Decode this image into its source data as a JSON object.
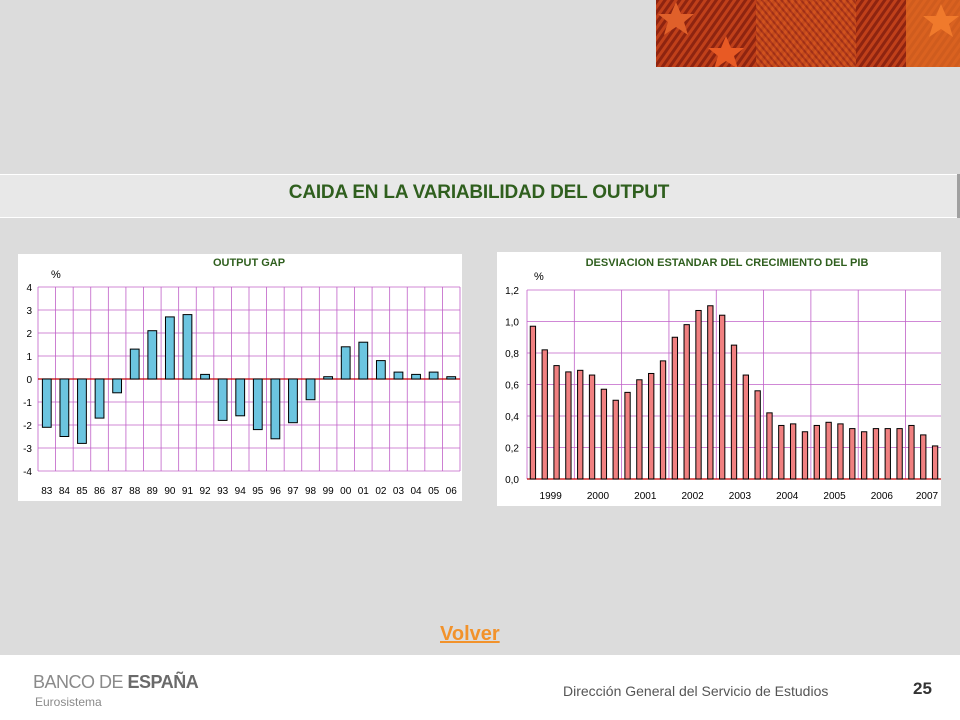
{
  "slide": {
    "title": "CAIDA EN LA VARIABILIDAD DEL OUTPUT",
    "link_label": "Volver",
    "page_number": "25",
    "footer_department": "Dirección General del Servicio de Estudios",
    "logo": {
      "main_prefix": "BANCO DE ",
      "main_bold": "ESPAÑA",
      "sub": "Eurosistema"
    }
  },
  "chart_data": [
    {
      "type": "bar",
      "title": "OUTPUT GAP",
      "ylabel": "%",
      "ylim": [
        -4,
        4
      ],
      "yticks": [
        -4,
        -3,
        -2,
        -1,
        0,
        1,
        2,
        3,
        4
      ],
      "grid": true,
      "colors": {
        "bar": "#6cc5e0",
        "grid": "#c060c8",
        "title": "#2f5f1e",
        "axis": "#c00000"
      },
      "categories": [
        "83",
        "84",
        "85",
        "86",
        "87",
        "88",
        "89",
        "90",
        "91",
        "92",
        "93",
        "94",
        "95",
        "96",
        "97",
        "98",
        "99",
        "00",
        "01",
        "02",
        "03",
        "04",
        "05",
        "06"
      ],
      "values": [
        -2.1,
        -2.5,
        -2.8,
        -1.7,
        -0.6,
        1.3,
        2.1,
        2.7,
        2.8,
        0.2,
        -1.8,
        -1.6,
        -2.2,
        -2.6,
        -1.9,
        -0.9,
        0.1,
        1.4,
        1.6,
        0.8,
        0.3,
        0.2,
        0.3,
        0.1
      ]
    },
    {
      "type": "bar",
      "title": "DESVIACION ESTANDAR DEL CRECIMIENTO DEL PIB",
      "ylabel": "%",
      "ylim": [
        0,
        1.2
      ],
      "yticks": [
        "0,0",
        "0,2",
        "0,4",
        "0,6",
        "0,8",
        "1,0",
        "1,2"
      ],
      "grid": true,
      "colors": {
        "bar": "#f08080",
        "grid": "#c060c8",
        "title": "#2f5f1e",
        "axis": "#c00000"
      },
      "year_labels": [
        "1999",
        "2000",
        "2001",
        "2002",
        "2003",
        "2004",
        "2005",
        "2006",
        "2007"
      ],
      "values": [
        0.97,
        0.82,
        0.72,
        0.68,
        0.69,
        0.66,
        0.57,
        0.5,
        0.55,
        0.63,
        0.67,
        0.75,
        0.9,
        0.98,
        1.07,
        1.1,
        1.04,
        0.85,
        0.66,
        0.56,
        0.42,
        0.34,
        0.35,
        0.3,
        0.34,
        0.36,
        0.35,
        0.32,
        0.3,
        0.32,
        0.32,
        0.32,
        0.34,
        0.28,
        0.21
      ]
    }
  ]
}
